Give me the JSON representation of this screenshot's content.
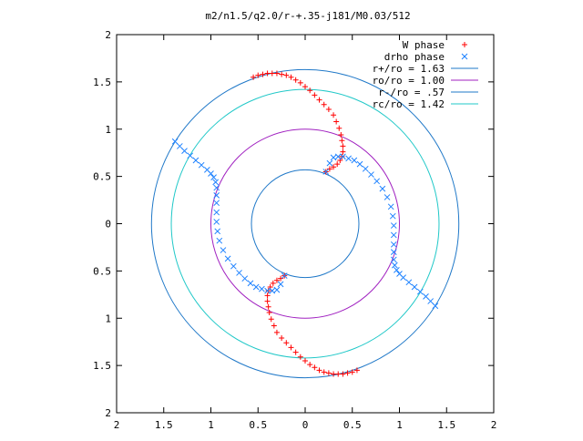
{
  "chart_data": {
    "type": "scatter",
    "title": "m2/n1.5/q2.0/r-+.35-j181/M0.03/512",
    "xlabel": "",
    "ylabel": "",
    "xlim": [
      -2,
      2
    ],
    "ylim": [
      -2,
      2
    ],
    "x_ticks": [
      -2,
      -1.5,
      -1,
      -0.5,
      0,
      0.5,
      1,
      1.5,
      2
    ],
    "y_ticks": [
      -2,
      -1.5,
      -1,
      -0.5,
      0,
      0.5,
      1,
      1.5,
      2
    ],
    "x_tick_labels": [
      "2",
      "1.5",
      "1",
      "0.5",
      "0",
      "0.5",
      "1",
      "1.5",
      "2"
    ],
    "y_tick_labels": [
      "2",
      "1.5",
      "1",
      "0.5",
      "0",
      "0.5",
      "1",
      "1.5",
      "2"
    ],
    "grid": false,
    "legend_position": "top-right",
    "circles": [
      {
        "name": "r+/ro = 1.63",
        "radius": 1.63,
        "color": "#1f78c8"
      },
      {
        "name": "ro/ro = 1.00",
        "radius": 1.0,
        "color": "#a020c0"
      },
      {
        "name": "r-/ro = .57",
        "radius": 0.57,
        "color": "#1f78c8"
      },
      {
        "name": "rc/ro = 1.42",
        "radius": 1.42,
        "color": "#20c8c8"
      }
    ],
    "series": [
      {
        "name": "W phase",
        "marker": "+",
        "color": "#ff0000",
        "x": [
          -0.55,
          -0.5,
          -0.45,
          -0.4,
          -0.35,
          -0.3,
          -0.25,
          -0.2,
          -0.15,
          -0.1,
          -0.05,
          0.0,
          0.05,
          0.1,
          0.15,
          0.2,
          0.25,
          0.3,
          0.33,
          0.36,
          0.38,
          0.39,
          0.4,
          0.4,
          0.39,
          0.37,
          0.34,
          0.3,
          0.26,
          0.22,
          0.55,
          0.5,
          0.45,
          0.4,
          0.35,
          0.3,
          0.25,
          0.2,
          0.15,
          0.1,
          0.05,
          0.0,
          -0.05,
          -0.1,
          -0.15,
          -0.2,
          -0.25,
          -0.3,
          -0.33,
          -0.36,
          -0.38,
          -0.39,
          -0.4,
          -0.4,
          -0.39,
          -0.37,
          -0.34,
          -0.3,
          -0.26,
          -0.22
        ],
        "y": [
          1.55,
          1.57,
          1.58,
          1.59,
          1.59,
          1.59,
          1.58,
          1.57,
          1.55,
          1.52,
          1.49,
          1.45,
          1.41,
          1.36,
          1.31,
          1.26,
          1.21,
          1.15,
          1.08,
          1.01,
          0.94,
          0.88,
          0.82,
          0.76,
          0.71,
          0.67,
          0.63,
          0.6,
          0.58,
          0.55,
          -1.55,
          -1.57,
          -1.58,
          -1.59,
          -1.59,
          -1.59,
          -1.58,
          -1.57,
          -1.55,
          -1.52,
          -1.49,
          -1.45,
          -1.41,
          -1.36,
          -1.31,
          -1.26,
          -1.21,
          -1.15,
          -1.08,
          -1.01,
          -0.94,
          -0.88,
          -0.82,
          -0.76,
          -0.71,
          -0.67,
          -0.63,
          -0.6,
          -0.58,
          -0.55
        ]
      },
      {
        "name": "drho phase",
        "marker": "x",
        "color": "#1e82ff",
        "x": [
          0.22,
          0.26,
          0.3,
          0.35,
          0.4,
          0.46,
          0.52,
          0.58,
          0.64,
          0.7,
          0.76,
          0.82,
          0.87,
          0.91,
          0.93,
          0.94,
          0.94,
          0.94,
          0.94,
          0.94,
          0.95,
          0.97,
          1.0,
          1.04,
          1.1,
          1.16,
          1.22,
          1.28,
          1.33,
          1.38,
          -0.22,
          -0.26,
          -0.3,
          -0.35,
          -0.4,
          -0.46,
          -0.52,
          -0.58,
          -0.64,
          -0.7,
          -0.76,
          -0.82,
          -0.87,
          -0.91,
          -0.93,
          -0.94,
          -0.94,
          -0.94,
          -0.94,
          -0.94,
          -0.95,
          -0.97,
          -1.0,
          -1.04,
          -1.1,
          -1.16,
          -1.22,
          -1.28,
          -1.33,
          -1.38
        ],
        "y": [
          0.55,
          0.64,
          0.7,
          0.71,
          0.71,
          0.69,
          0.67,
          0.63,
          0.58,
          0.52,
          0.45,
          0.37,
          0.28,
          0.18,
          0.08,
          -0.02,
          -0.12,
          -0.22,
          -0.3,
          -0.38,
          -0.44,
          -0.49,
          -0.53,
          -0.57,
          -0.62,
          -0.67,
          -0.72,
          -0.77,
          -0.82,
          -0.87,
          -0.55,
          -0.64,
          -0.7,
          -0.71,
          -0.71,
          -0.69,
          -0.67,
          -0.63,
          -0.58,
          -0.52,
          -0.45,
          -0.37,
          -0.28,
          -0.18,
          -0.08,
          0.02,
          0.12,
          0.22,
          0.3,
          0.38,
          0.44,
          0.49,
          0.53,
          0.57,
          0.62,
          0.67,
          0.72,
          0.77,
          0.82,
          0.87
        ]
      }
    ]
  }
}
